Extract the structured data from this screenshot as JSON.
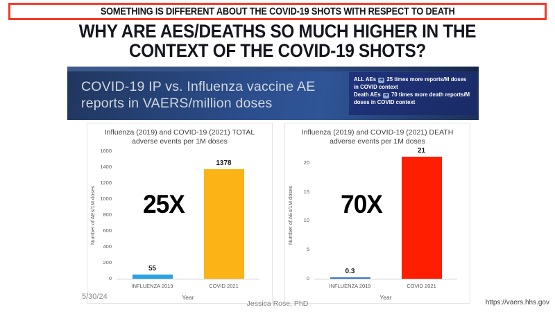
{
  "alert_banner": {
    "text": "SOMETHING IS DIFFERENT ABOUT THE COVID-19 SHOTS WITH RESPECT TO DEATH"
  },
  "title": {
    "line1": "WHY ARE AES/DEATHS SO MUCH HIGHER IN THE",
    "line2": "CONTEXT OF THE COVID-19 SHOTS?"
  },
  "header_panel": {
    "title_line1": "COVID-19 IP vs. Influenza vaccine AE",
    "title_line2": "reports in VAERS/million doses",
    "callout": {
      "arrow_glyph": "➜",
      "line1_prefix": "ALL AEs",
      "line1_text": "25 times more reports/M doses in COVID context",
      "line2_prefix": "Death AEs",
      "line2_text": "70 times more death reports/M doses in COVID context"
    }
  },
  "chart_data": [
    {
      "type": "bar",
      "title": "Influenza (2019) and COVID-19 (2021) TOTAL adverse events per 1M doses",
      "title_lines": [
        "Influenza (2019) and COVID-19 (2021) TOTAL",
        "adverse events per 1M doses"
      ],
      "categories": [
        "INFLUENZA 2019",
        "COVID 2021"
      ],
      "values": [
        55,
        1378
      ],
      "value_labels": [
        "55",
        "1378"
      ],
      "bar_colors": [
        "#27a2e5",
        "#fcb316"
      ],
      "annotation": "25X",
      "xlabel": "Year",
      "ylabel": "Number of AEs/1M doses",
      "ylim": [
        0,
        1600
      ],
      "yticks": [
        0,
        200,
        400,
        600,
        800,
        1000,
        1200,
        1400,
        1600
      ],
      "grid": false,
      "legend": false
    },
    {
      "type": "bar",
      "title": "Influenza (2019) and COVID-19 (2021) DEATH adverse events per 1M doses",
      "title_lines": [
        "Influenza (2019) and COVID-19 (2021) DEATH",
        "adverse events per 1M doses"
      ],
      "categories": [
        "INFLUENZA 2019",
        "COVID 2021"
      ],
      "values": [
        0.3,
        21
      ],
      "value_labels": [
        "0.3",
        "21"
      ],
      "bar_colors": [
        "#3c79c4",
        "#ff1f00"
      ],
      "annotation": "70X",
      "xlabel": "Year",
      "ylabel": "Number of AEs/1M doses",
      "ylim": [
        0,
        22
      ],
      "yticks": [
        0,
        5,
        10,
        15,
        20
      ],
      "grid": false,
      "legend": false
    }
  ],
  "footer": {
    "date": "5/30/24",
    "author": "Jessica Rose, PhD",
    "url": "https://vaers.hhs.gov"
  },
  "colors": {
    "alert_border": "#f5392a",
    "title_text": "#15151f",
    "banner_blue_dark": "#1d3158",
    "banner_blue_mid": "#2f5597",
    "callout_bg": "#1a2b66",
    "bar_blue": "#27a2e5",
    "bar_yellow": "#fcb316",
    "bar_red": "#ff1f00",
    "bar_blue_dark": "#3c79c4"
  }
}
